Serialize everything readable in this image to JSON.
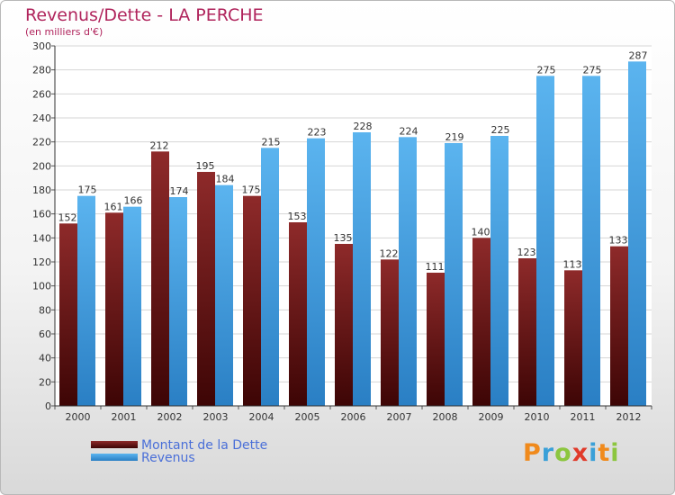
{
  "chart_data": {
    "type": "bar",
    "title": "Revenus/Dette - LA PERCHE",
    "subtitle": "(en milliers d'€)",
    "categories": [
      "2000",
      "2001",
      "2002",
      "2003",
      "2004",
      "2005",
      "2006",
      "2007",
      "2008",
      "2009",
      "2010",
      "2011",
      "2012"
    ],
    "series": [
      {
        "name": "Montant de la Dette",
        "values": [
          152,
          161,
          212,
          195,
          175,
          153,
          135,
          122,
          111,
          140,
          123,
          113,
          133
        ],
        "color": "#7a1a1a"
      },
      {
        "name": "Revenus",
        "values": [
          175,
          166,
          174,
          184,
          215,
          223,
          228,
          224,
          219,
          225,
          275,
          275,
          287
        ],
        "color": "#4da6e8"
      }
    ],
    "ylim": [
      0,
      300
    ],
    "yticks": [
      0,
      20,
      40,
      60,
      80,
      100,
      120,
      140,
      160,
      180,
      200,
      220,
      240,
      260,
      280,
      300
    ],
    "grid": true,
    "legend": "bottom-left"
  },
  "logo": {
    "letters": [
      {
        "ch": "P",
        "color": "#f08a1c"
      },
      {
        "ch": "r",
        "color": "#3aa0d8"
      },
      {
        "ch": "o",
        "color": "#8cc63f"
      },
      {
        "ch": "x",
        "color": "#e03a2a"
      },
      {
        "ch": "i",
        "color": "#3aa0d8"
      },
      {
        "ch": "t",
        "color": "#f08a1c"
      },
      {
        "ch": "i",
        "color": "#8cc63f"
      }
    ]
  }
}
